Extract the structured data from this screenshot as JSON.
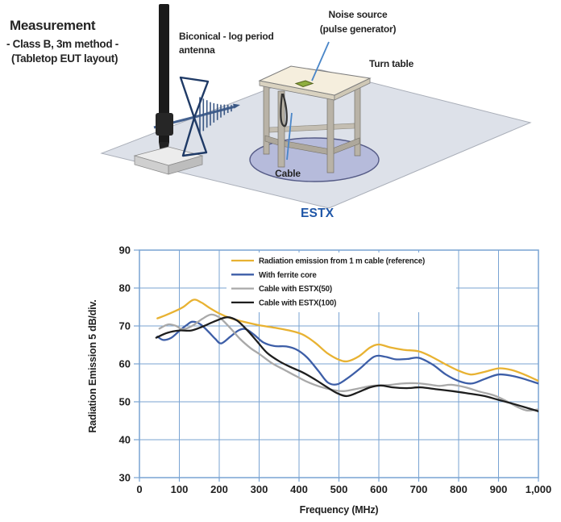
{
  "measurement": {
    "title": "Measurement",
    "line1": "- Class B, 3m method -",
    "line2": "(Tabletop EUT layout)"
  },
  "diagram": {
    "antenna_label": [
      "Biconical - log period",
      "antenna"
    ],
    "noise_source_label": [
      "Noise source",
      "(pulse generator)"
    ],
    "turn_table_label": "Turn table",
    "cable_label": "Cable"
  },
  "section_label": "ESTX",
  "colors": {
    "estx_label": "#2057a8",
    "callout_blue": "#4a86c8",
    "grid_blue": "#79a3d2",
    "floor": "#dde1e9",
    "turntable": "#b6bbdb",
    "tabletop": "#f5eedd"
  },
  "chart_data": {
    "type": "line",
    "title": "",
    "xlabel": "Frequency (MHz)",
    "ylabel": "Radiation Emission 5 dB/div.",
    "xlim": [
      0,
      1000
    ],
    "ylim": [
      30,
      90
    ],
    "grid": true,
    "grid_color": "#79a3d2",
    "legend_position": "inside-top-right",
    "x_tick_values": [
      0,
      100,
      200,
      300,
      400,
      500,
      600,
      700,
      800,
      900,
      1000
    ],
    "x_tick_labels": [
      "0",
      "100",
      "200",
      "300",
      "400",
      "500",
      "600",
      "700",
      "800",
      "900",
      "1,000"
    ],
    "y_tick_values": [
      30,
      40,
      50,
      60,
      70,
      80,
      90
    ],
    "y_tick_labels": [
      "30",
      "40",
      "50",
      "60",
      "70",
      "80",
      "90"
    ],
    "series": [
      {
        "name": "Radiation emission from 1 m cable (reference)",
        "color": "#e8b232",
        "points": [
          [
            45,
            72
          ],
          [
            65,
            72.8
          ],
          [
            85,
            73.7
          ],
          [
            110,
            75
          ],
          [
            135,
            76.9
          ],
          [
            155,
            76.2
          ],
          [
            175,
            74.8
          ],
          [
            200,
            73.3
          ],
          [
            230,
            72
          ],
          [
            265,
            71
          ],
          [
            300,
            70.2
          ],
          [
            340,
            69.5
          ],
          [
            380,
            68.7
          ],
          [
            410,
            67.7
          ],
          [
            440,
            65.6
          ],
          [
            470,
            62.9
          ],
          [
            500,
            61.1
          ],
          [
            522,
            60.7
          ],
          [
            550,
            62
          ],
          [
            578,
            64.3
          ],
          [
            600,
            65.1
          ],
          [
            630,
            64.3
          ],
          [
            662,
            63.7
          ],
          [
            700,
            63.3
          ],
          [
            732,
            61.9
          ],
          [
            765,
            60
          ],
          [
            800,
            58.2
          ],
          [
            830,
            57.2
          ],
          [
            862,
            57.8
          ],
          [
            900,
            58.8
          ],
          [
            932,
            58.4
          ],
          [
            962,
            57.3
          ],
          [
            1000,
            55.5
          ]
        ]
      },
      {
        "name": "With ferrite core",
        "color": "#3d5ea7",
        "points": [
          [
            45,
            67.2
          ],
          [
            60,
            66.3
          ],
          [
            80,
            66.9
          ],
          [
            100,
            68.7
          ],
          [
            118,
            70.2
          ],
          [
            132,
            71.1
          ],
          [
            152,
            70.5
          ],
          [
            172,
            68.6
          ],
          [
            190,
            66.6
          ],
          [
            205,
            65.4
          ],
          [
            228,
            67.2
          ],
          [
            248,
            68.8
          ],
          [
            265,
            69.2
          ],
          [
            285,
            67.9
          ],
          [
            310,
            65.7
          ],
          [
            338,
            64.7
          ],
          [
            368,
            64.6
          ],
          [
            395,
            63.7
          ],
          [
            420,
            61.7
          ],
          [
            448,
            58.2
          ],
          [
            472,
            55.1
          ],
          [
            495,
            54.6
          ],
          [
            520,
            56.1
          ],
          [
            552,
            58.7
          ],
          [
            588,
            61.9
          ],
          [
            615,
            61.9
          ],
          [
            642,
            61.2
          ],
          [
            672,
            61.3
          ],
          [
            700,
            61.6
          ],
          [
            735,
            59.8
          ],
          [
            768,
            57.2
          ],
          [
            800,
            55.5
          ],
          [
            832,
            54.8
          ],
          [
            865,
            56
          ],
          [
            900,
            57.2
          ],
          [
            935,
            56.8
          ],
          [
            965,
            56
          ],
          [
            1000,
            54.8
          ]
        ]
      },
      {
        "name": "Cable with ESTX(50)",
        "color": "#a9a9a9",
        "points": [
          [
            50,
            69.3
          ],
          [
            72,
            70.4
          ],
          [
            92,
            70
          ],
          [
            108,
            69.1
          ],
          [
            132,
            70
          ],
          [
            158,
            71.9
          ],
          [
            180,
            73
          ],
          [
            202,
            72.1
          ],
          [
            228,
            69.4
          ],
          [
            252,
            66.6
          ],
          [
            278,
            64.2
          ],
          [
            302,
            62.5
          ],
          [
            332,
            60.2
          ],
          [
            362,
            58.5
          ],
          [
            392,
            56.8
          ],
          [
            422,
            55.2
          ],
          [
            452,
            54
          ],
          [
            482,
            53.2
          ],
          [
            512,
            52.8
          ],
          [
            548,
            53.5
          ],
          [
            582,
            54.2
          ],
          [
            622,
            54.4
          ],
          [
            658,
            54.8
          ],
          [
            692,
            54.9
          ],
          [
            722,
            54.6
          ],
          [
            752,
            54.2
          ],
          [
            782,
            54.5
          ],
          [
            818,
            53.8
          ],
          [
            852,
            52.7
          ],
          [
            888,
            51.7
          ],
          [
            918,
            50.3
          ],
          [
            948,
            48.6
          ],
          [
            972,
            47.7
          ],
          [
            1000,
            48
          ]
        ]
      },
      {
        "name": "Cable with ESTX(100)",
        "color": "#1e1e1e",
        "points": [
          [
            42,
            66.9
          ],
          [
            70,
            68.2
          ],
          [
            100,
            68.8
          ],
          [
            130,
            68.8
          ],
          [
            160,
            69.9
          ],
          [
            190,
            71.3
          ],
          [
            220,
            72.3
          ],
          [
            245,
            71.4
          ],
          [
            270,
            68.9
          ],
          [
            295,
            65.9
          ],
          [
            320,
            62.9
          ],
          [
            350,
            60.7
          ],
          [
            380,
            59.1
          ],
          [
            410,
            57.7
          ],
          [
            440,
            55.9
          ],
          [
            468,
            54
          ],
          [
            495,
            52.3
          ],
          [
            520,
            51.5
          ],
          [
            550,
            52.6
          ],
          [
            578,
            53.8
          ],
          [
            605,
            54.3
          ],
          [
            635,
            53.8
          ],
          [
            670,
            53.6
          ],
          [
            705,
            53.8
          ],
          [
            745,
            53.3
          ],
          [
            785,
            52.8
          ],
          [
            825,
            52.2
          ],
          [
            865,
            51.5
          ],
          [
            900,
            50.5
          ],
          [
            935,
            49.5
          ],
          [
            965,
            48.6
          ],
          [
            1000,
            47.5
          ]
        ]
      }
    ]
  }
}
